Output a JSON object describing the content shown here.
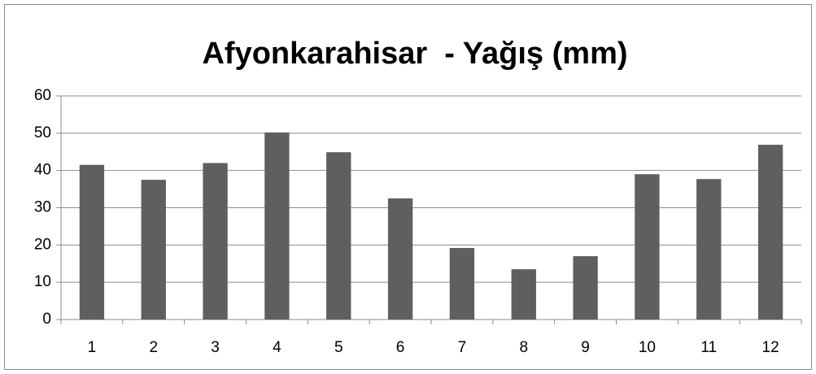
{
  "chart_data": {
    "type": "bar",
    "title": "Afyonkarahisar  - Yağış (mm)",
    "categories": [
      "1",
      "2",
      "3",
      "4",
      "5",
      "6",
      "7",
      "8",
      "9",
      "10",
      "11",
      "12"
    ],
    "values": [
      41.5,
      37.5,
      42,
      50.2,
      44.9,
      32.5,
      19.2,
      13.5,
      17,
      39,
      37.7,
      46.9
    ],
    "color": "#5f5f5f",
    "ylim": [
      0,
      60
    ],
    "yticks": [
      0,
      10,
      20,
      30,
      40,
      50,
      60
    ],
    "grid": true
  }
}
